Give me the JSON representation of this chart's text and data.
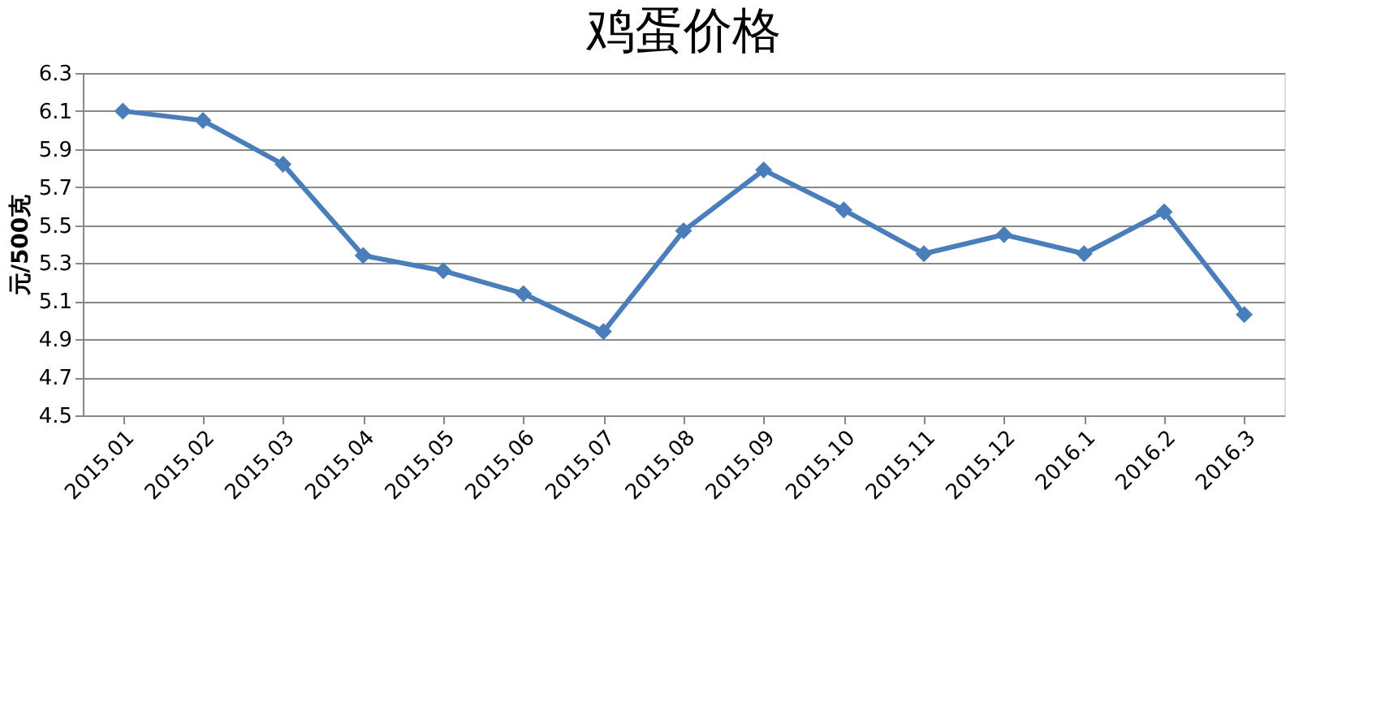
{
  "chart_data": {
    "type": "line",
    "title": "鸡蛋价格",
    "ylabel": "元/500克",
    "categories": [
      "2015.01",
      "2015.02",
      "2015.03",
      "2015.04",
      "2015.05",
      "2015.06",
      "2015.07",
      "2015.08",
      "2015.09",
      "2015.10",
      "2015.11",
      "2015.12",
      "2016.1",
      "2016.2",
      "2016.3"
    ],
    "series": [
      {
        "color": "#4a7ebb",
        "values": [
          6.1,
          6.05,
          5.82,
          5.34,
          5.26,
          5.14,
          4.94,
          5.47,
          5.79,
          5.58,
          5.35,
          5.45,
          5.35,
          5.57,
          5.03
        ]
      }
    ],
    "ylim": [
      4.5,
      6.3
    ],
    "yticks": [
      4.5,
      4.7,
      4.9,
      5.1,
      5.3,
      5.5,
      5.7,
      5.9,
      6.1,
      6.3
    ],
    "grid": "y",
    "marker": "diamond",
    "line_style": "solid",
    "legend": false
  }
}
